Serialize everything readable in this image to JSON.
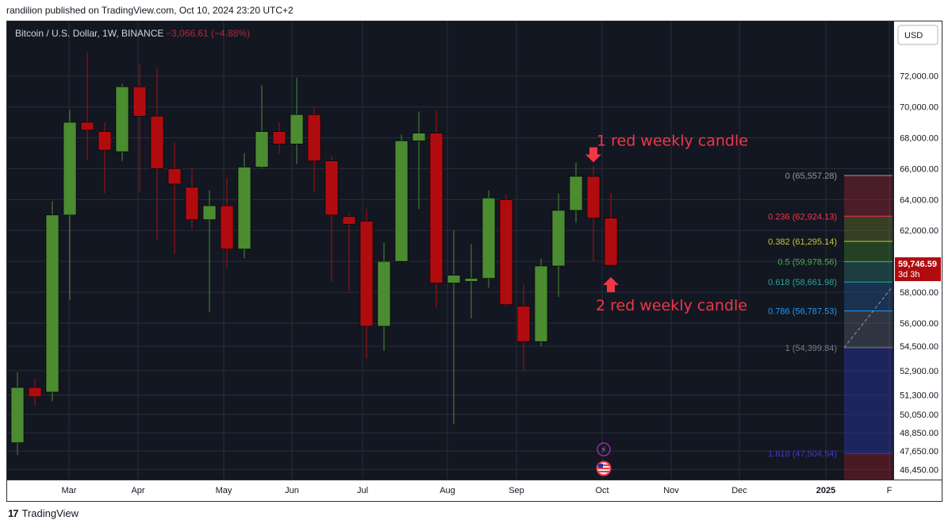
{
  "header": {
    "publish_line": "randilion published on TradingView.com, Oct 10, 2024 23:20 UTC+2"
  },
  "footer": {
    "logo_glyph": "17",
    "brand": "TradingView"
  },
  "chart_data": {
    "type": "candlestick",
    "symbol_title": "Bitcoin / U.S. Dollar, 1W, BINANCE",
    "change_text": "−3,066.61 (−4.88%)",
    "currency_button": "USD",
    "y_ticks": [
      "72,000.00",
      "70,000.00",
      "68,000.00",
      "66,000.00",
      "64,000.00",
      "62,000.00",
      "60,000.00",
      "58,000.00",
      "56,000.00",
      "54,500.00",
      "52,900.00",
      "51,300.00",
      "50,050.00",
      "48,850.00",
      "47,650.00",
      "46,450.00"
    ],
    "x_ticks": [
      "Mar",
      "Apr",
      "May",
      "Jun",
      "Jul",
      "Aug",
      "Sep",
      "Oct",
      "Nov",
      "Dec",
      "2025",
      "F"
    ],
    "ylim": [
      46000,
      74500
    ],
    "colors": {
      "up": "#4b8c30",
      "down": "#b00c0f",
      "background": "#131722",
      "grid": "#2a2e39",
      "annotation": "#f23645"
    },
    "candles": [
      {
        "o": 48200,
        "h": 52800,
        "l": 47400,
        "c": 51800
      },
      {
        "o": 51800,
        "h": 52400,
        "l": 50600,
        "c": 51200
      },
      {
        "o": 51500,
        "h": 63900,
        "l": 50900,
        "c": 63000
      },
      {
        "o": 63000,
        "h": 69800,
        "l": 57500,
        "c": 69000
      },
      {
        "o": 69000,
        "h": 73500,
        "l": 66600,
        "c": 68500
      },
      {
        "o": 68400,
        "h": 69000,
        "l": 64400,
        "c": 67200
      },
      {
        "o": 67100,
        "h": 71500,
        "l": 66500,
        "c": 71300
      },
      {
        "o": 71300,
        "h": 72800,
        "l": 64500,
        "c": 69400
      },
      {
        "o": 69400,
        "h": 72500,
        "l": 61400,
        "c": 66000
      },
      {
        "o": 66000,
        "h": 67700,
        "l": 60500,
        "c": 65000
      },
      {
        "o": 64800,
        "h": 66000,
        "l": 62100,
        "c": 62700
      },
      {
        "o": 62700,
        "h": 64600,
        "l": 56700,
        "c": 63600
      },
      {
        "o": 63600,
        "h": 65400,
        "l": 59600,
        "c": 60800
      },
      {
        "o": 60800,
        "h": 67000,
        "l": 60200,
        "c": 66100
      },
      {
        "o": 66100,
        "h": 71400,
        "l": 66000,
        "c": 68400
      },
      {
        "o": 68400,
        "h": 69000,
        "l": 67000,
        "c": 67600
      },
      {
        "o": 67600,
        "h": 71900,
        "l": 66300,
        "c": 69500
      },
      {
        "o": 69500,
        "h": 70000,
        "l": 64500,
        "c": 66500
      },
      {
        "o": 66500,
        "h": 66800,
        "l": 58700,
        "c": 63000
      },
      {
        "o": 62900,
        "h": 63100,
        "l": 58100,
        "c": 62400
      },
      {
        "o": 62600,
        "h": 63400,
        "l": 53700,
        "c": 55800
      },
      {
        "o": 55800,
        "h": 61200,
        "l": 54200,
        "c": 60000
      },
      {
        "o": 60000,
        "h": 68200,
        "l": 60000,
        "c": 67800
      },
      {
        "o": 67800,
        "h": 69700,
        "l": 63400,
        "c": 68300
      },
      {
        "o": 68300,
        "h": 69800,
        "l": 57000,
        "c": 58600
      },
      {
        "o": 58600,
        "h": 62000,
        "l": 49400,
        "c": 59100
      },
      {
        "o": 58700,
        "h": 61100,
        "l": 56300,
        "c": 58900
      },
      {
        "o": 58900,
        "h": 64600,
        "l": 58300,
        "c": 64100
      },
      {
        "o": 64000,
        "h": 64300,
        "l": 57100,
        "c": 57200
      },
      {
        "o": 57100,
        "h": 58500,
        "l": 52900,
        "c": 54800
      },
      {
        "o": 54800,
        "h": 60200,
        "l": 54500,
        "c": 59700
      },
      {
        "o": 59700,
        "h": 64400,
        "l": 57700,
        "c": 63300
      },
      {
        "o": 63300,
        "h": 66400,
        "l": 62500,
        "c": 65500
      },
      {
        "o": 65500,
        "h": 66200,
        "l": 60000,
        "c": 62800
      },
      {
        "o": 62800,
        "h": 64400,
        "l": 59700,
        "c": 59746.59
      }
    ],
    "fib_levels": [
      {
        "ratio": "0",
        "label": "0 (65,557.28)",
        "price": 65557.28,
        "color": "#9598a1",
        "fill": "rgba(178,40,51,0.35)"
      },
      {
        "ratio": "0.236",
        "label": "0.236 (62,924.13)",
        "price": 62924.13,
        "color": "#f23645",
        "fill": "rgba(125,135,40,0.35)"
      },
      {
        "ratio": "0.382",
        "label": "0.382 (61,295.14)",
        "price": 61295.14,
        "color": "#c0ca33",
        "fill": "rgba(60,130,40,0.4)"
      },
      {
        "ratio": "0.5",
        "label": "0.5 (59,978.56)",
        "price": 59978.56,
        "color": "#4caf50",
        "fill": "rgba(40,120,110,0.4)"
      },
      {
        "ratio": "0.618",
        "label": "0.618 (58,661.98)",
        "price": 58661.98,
        "color": "#26a69a",
        "fill": "rgba(40,90,150,0.4)"
      },
      {
        "ratio": "0.786",
        "label": "0.786 (56,787.53)",
        "price": 56787.53,
        "color": "#2196f3",
        "fill": "rgba(100,110,120,0.35)"
      },
      {
        "ratio": "1",
        "label": "1 (54,399.84)",
        "price": 54399.84,
        "color": "#787b86",
        "fill": "rgba(40,50,140,0.55)"
      },
      {
        "ratio": "1.618",
        "label": "1.618 (47,504.54)",
        "price": 47504.54,
        "color": "#3f3bc4",
        "fill": "rgba(140,30,40,0.45)"
      }
    ],
    "current_price": {
      "value": "59,746.59",
      "countdown": "3d 3h"
    },
    "annotations": [
      {
        "text": "1 red weekly candle",
        "candle": 33,
        "arrow": "down"
      },
      {
        "text": "2 red weekly candle",
        "candle": 34,
        "arrow": "up"
      }
    ]
  }
}
